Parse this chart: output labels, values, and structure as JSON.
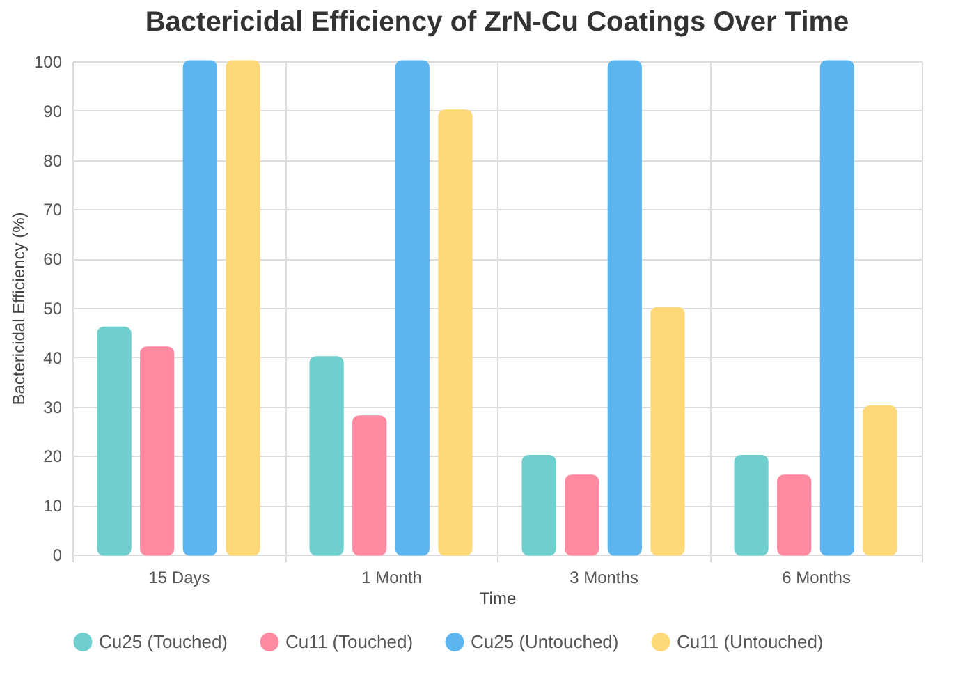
{
  "chart_data": {
    "type": "bar",
    "title": "Bactericidal Efficiency of ZrN-Cu Coatings Over Time",
    "xlabel": "Time",
    "ylabel": "Bactericidal Efficiency (%)",
    "categories": [
      "15 Days",
      "1 Month",
      "3 Months",
      "6 Months"
    ],
    "series": [
      {
        "name": "Cu25 (Touched)",
        "color": "#6fcfcf",
        "values": [
          46,
          40,
          20,
          20
        ]
      },
      {
        "name": "Cu11 (Touched)",
        "color": "#ff8aa2",
        "values": [
          42,
          28,
          16,
          16
        ]
      },
      {
        "name": "Cu25 (Untouched)",
        "color": "#5db5ef",
        "values": [
          100,
          100,
          100,
          100
        ]
      },
      {
        "name": "Cu11 (Untouched)",
        "color": "#ffd878",
        "values": [
          100,
          90,
          50,
          30
        ]
      }
    ],
    "ylim": [
      0,
      100
    ],
    "yticks": [
      0,
      10,
      20,
      30,
      40,
      50,
      60,
      70,
      80,
      90,
      100
    ],
    "grid": true,
    "legend": "bottom"
  }
}
